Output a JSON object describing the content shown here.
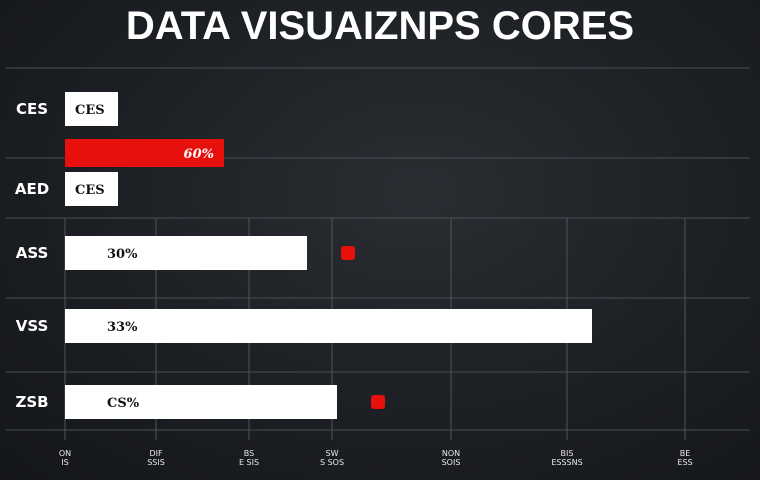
{
  "chart_data": {
    "type": "bar",
    "orientation": "horizontal",
    "title": "DATA VISUAIZNPS CORES",
    "grid": true,
    "colors": {
      "bar": "#ffffff",
      "highlight": "#e8100c",
      "marker": "#e8100c",
      "background": "#1c1f23"
    },
    "bars": [
      {
        "category": "CES",
        "label": "CES",
        "value": 53,
        "color": "#ffffff"
      },
      {
        "category": "",
        "label": "60%",
        "value": 159,
        "color": "#e8100c"
      },
      {
        "category": "AED",
        "label": "CES",
        "value": 53,
        "color": "#ffffff"
      },
      {
        "category": "ASS",
        "label": "30%",
        "value": 242,
        "color": "#ffffff",
        "marker": true
      },
      {
        "category": "VSS",
        "label": "33%",
        "value": 527,
        "color": "#ffffff"
      },
      {
        "category": "ZSB",
        "label": "CS%",
        "value": 272,
        "color": "#ffffff",
        "marker": true
      }
    ],
    "xlim": [
      0,
      690
    ],
    "x_ticks": [
      {
        "value": 0,
        "label": [
          "ON",
          "IS"
        ]
      },
      {
        "value": 91,
        "label": [
          "DIF",
          "SSIS"
        ]
      },
      {
        "value": 184,
        "label": [
          "BS",
          "E SIS"
        ]
      },
      {
        "value": 267,
        "label": [
          "SW",
          "S SOS"
        ]
      },
      {
        "value": 386,
        "label": [
          "NON",
          "SOIS"
        ]
      },
      {
        "value": 502,
        "label": [
          "BIS",
          "ESSSNS"
        ]
      },
      {
        "value": 620,
        "label": [
          "BE",
          "ESS"
        ]
      }
    ]
  }
}
